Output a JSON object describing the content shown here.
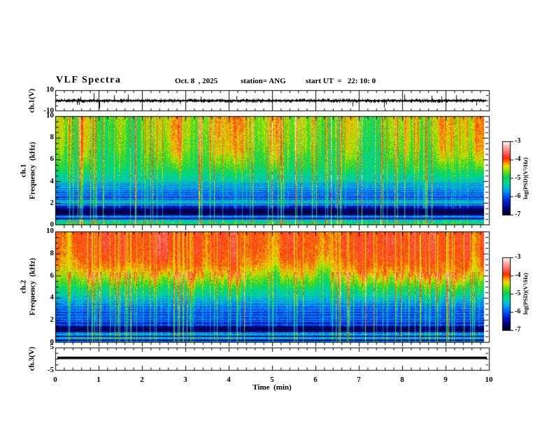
{
  "header": {
    "title": "VLF Spectra",
    "date": "Oct. 8  , 2025",
    "station": "station= ANG",
    "start_ut": "start UT  =   22: 10: 0"
  },
  "x_axis": {
    "title": "Time  (min)",
    "min": 0,
    "max": 10,
    "major_tick_labels": [
      "0",
      "1",
      "2",
      "3",
      "4",
      "5",
      "6",
      "7",
      "8",
      "9",
      "10"
    ],
    "minor_step_min": 0.2
  },
  "panels": {
    "ch1_wave": {
      "y_label": "ch.1(V)",
      "y_tick_labels": [
        "10",
        "-10"
      ],
      "ylim": [
        -10,
        10
      ]
    },
    "ch1_spec": {
      "y_label_ch": "ch.1",
      "y_label_axis": "Frequency  (kHz)",
      "y_tick_labels": [
        "0",
        "2",
        "4",
        "6",
        "8",
        "10"
      ],
      "ylim": [
        0,
        10
      ]
    },
    "ch2_spec": {
      "y_label_ch": "ch.2",
      "y_label_axis": "Frequency  (kHz)",
      "y_tick_labels": [
        "0",
        "2",
        "4",
        "6",
        "8",
        "10"
      ],
      "ylim": [
        0,
        10
      ]
    },
    "ch3_wave": {
      "y_label": "ch.3(V)",
      "y_tick_labels": [
        "5",
        "-5"
      ],
      "ylim": [
        -5,
        5
      ]
    }
  },
  "colorbar": {
    "unit_label": "log(PSD)(V²/Hz)",
    "tick_labels": [
      "-3",
      "-4",
      "-5",
      "-6",
      "-7"
    ],
    "range": [
      -7,
      -3
    ],
    "colormap_stops": [
      [
        0.0,
        "#000008"
      ],
      [
        0.08,
        "#000070"
      ],
      [
        0.18,
        "#0018c8"
      ],
      [
        0.28,
        "#0068ff"
      ],
      [
        0.36,
        "#00b4e8"
      ],
      [
        0.44,
        "#00dc8c"
      ],
      [
        0.52,
        "#10d050"
      ],
      [
        0.6,
        "#7ce000"
      ],
      [
        0.66,
        "#e8e400"
      ],
      [
        0.71,
        "#ff9800"
      ],
      [
        0.77,
        "#ff2800"
      ],
      [
        0.85,
        "#ff6868"
      ],
      [
        0.93,
        "#ffb4b4"
      ],
      [
        1.0,
        "#ffffff"
      ]
    ]
  },
  "chart_data": [
    {
      "type": "line",
      "panel": "ch.1(V) time series",
      "xlim": [
        0,
        10
      ],
      "ylim": [
        -10,
        10
      ],
      "description": "dense broadband noise band centered on 0 V (about ±2 V) with frequent impulsive sferic spikes, mostly downward, reaching about ±9 V",
      "baseline_V": 0
    },
    {
      "type": "heatmap",
      "panel": "ch.1 spectrogram",
      "xlabel": "Time (min)",
      "ylabel": "Frequency (kHz)",
      "xlim": [
        0,
        10
      ],
      "ylim": [
        0,
        10
      ],
      "zlim": [
        -7,
        -3
      ],
      "zlabel": "log(PSD)(V²/Hz)",
      "background_profile": [
        [
          0,
          -5.05
        ],
        [
          0.3,
          -5.25
        ],
        [
          0.55,
          -5.45
        ],
        [
          0.8,
          -5.9
        ],
        [
          1.0,
          -6.7
        ],
        [
          1.3,
          -6.65
        ],
        [
          1.6,
          -6.35
        ],
        [
          1.9,
          -6.1
        ],
        [
          2.2,
          -6.0
        ],
        [
          2.6,
          -6.15
        ],
        [
          3.1,
          -6.1
        ],
        [
          3.6,
          -5.9
        ],
        [
          4.0,
          -5.75
        ],
        [
          4.3,
          -5.4
        ],
        [
          4.7,
          -5.2
        ],
        [
          5.2,
          -5.0
        ],
        [
          6.0,
          -4.85
        ],
        [
          7.0,
          -4.7
        ],
        [
          8.5,
          -4.6
        ],
        [
          10,
          -4.55
        ]
      ],
      "bright_lines": [
        [
          4.55,
          -4.95
        ],
        [
          4.3,
          -5.15
        ],
        [
          4.1,
          -4.9
        ],
        [
          3.9,
          -5.2
        ],
        [
          3.7,
          -5.35
        ],
        [
          3.5,
          -5.25
        ],
        [
          3.3,
          -5.4
        ],
        [
          3.1,
          -5.45
        ],
        [
          2.9,
          -5.5
        ],
        [
          2.7,
          -5.45
        ],
        [
          2.45,
          -5.55
        ],
        [
          2.2,
          -5.3
        ],
        [
          2.05,
          -5.05
        ],
        [
          1.85,
          -5.45
        ],
        [
          0.75,
          -5.5
        ]
      ],
      "dark_lines": [
        [
          1.42,
          -6.85
        ],
        [
          1.25,
          -6.9
        ],
        [
          1.08,
          -6.9
        ],
        [
          0.95,
          -6.8
        ],
        [
          0.6,
          -6.5
        ]
      ],
      "streaks": {
        "prob": 0.22,
        "gain": 2.2,
        "pull": null,
        "flame_amp": 0
      },
      "noise": 0.55,
      "col_mod": 0.5,
      "bottom_speckle": true
    },
    {
      "type": "heatmap",
      "panel": "ch.2 spectrogram",
      "xlabel": "Time (min)",
      "ylabel": "Frequency (kHz)",
      "xlim": [
        0,
        10
      ],
      "ylim": [
        0,
        10
      ],
      "zlim": [
        -7,
        -3
      ],
      "zlabel": "log(PSD)(V²/Hz)",
      "background_profile": [
        [
          0,
          -5.6
        ],
        [
          0.25,
          -5.5
        ],
        [
          0.5,
          -5.45
        ],
        [
          0.8,
          -5.8
        ],
        [
          1.1,
          -6.65
        ],
        [
          1.5,
          -6.4
        ],
        [
          2.0,
          -6.3
        ],
        [
          2.6,
          -6.2
        ],
        [
          3.2,
          -5.95
        ],
        [
          3.7,
          -5.75
        ],
        [
          4.1,
          -5.5
        ],
        [
          4.5,
          -5.25
        ],
        [
          4.9,
          -5.0
        ],
        [
          5.4,
          -4.75
        ],
        [
          6.0,
          -4.45
        ],
        [
          6.6,
          -4.2
        ],
        [
          7.2,
          -4.05
        ],
        [
          8.0,
          -3.95
        ],
        [
          9.0,
          -3.9
        ],
        [
          10,
          -3.88
        ]
      ],
      "bright_lines": [
        [
          4.3,
          -5.05
        ],
        [
          4.05,
          -5.25
        ],
        [
          3.85,
          -5.3
        ],
        [
          3.6,
          -5.35
        ],
        [
          3.35,
          -5.45
        ],
        [
          3.1,
          -5.5
        ],
        [
          2.85,
          -5.55
        ],
        [
          2.6,
          -5.6
        ],
        [
          2.35,
          -5.6
        ],
        [
          2.1,
          -5.65
        ],
        [
          1.9,
          -5.7
        ],
        [
          1.6,
          -5.75
        ],
        [
          0.7,
          -5.5
        ]
      ],
      "dark_lines": [
        [
          1.35,
          -6.9
        ],
        [
          1.15,
          -6.9
        ],
        [
          0.98,
          -6.85
        ],
        [
          0.55,
          -6.6
        ],
        [
          0.18,
          -6.6
        ]
      ],
      "streaks": {
        "prob": 0.25,
        "gain": 2.0,
        "pull": -4.35,
        "flame_amp": 1.1
      },
      "noise": 0.55,
      "col_mod": 0.3,
      "bottom_speckle": false
    },
    {
      "type": "line",
      "panel": "ch.3(V) time series",
      "xlim": [
        0,
        10
      ],
      "ylim": [
        -5,
        5
      ],
      "description": "flat thick line at constant 0 V across the whole record",
      "baseline_V": 0
    }
  ]
}
